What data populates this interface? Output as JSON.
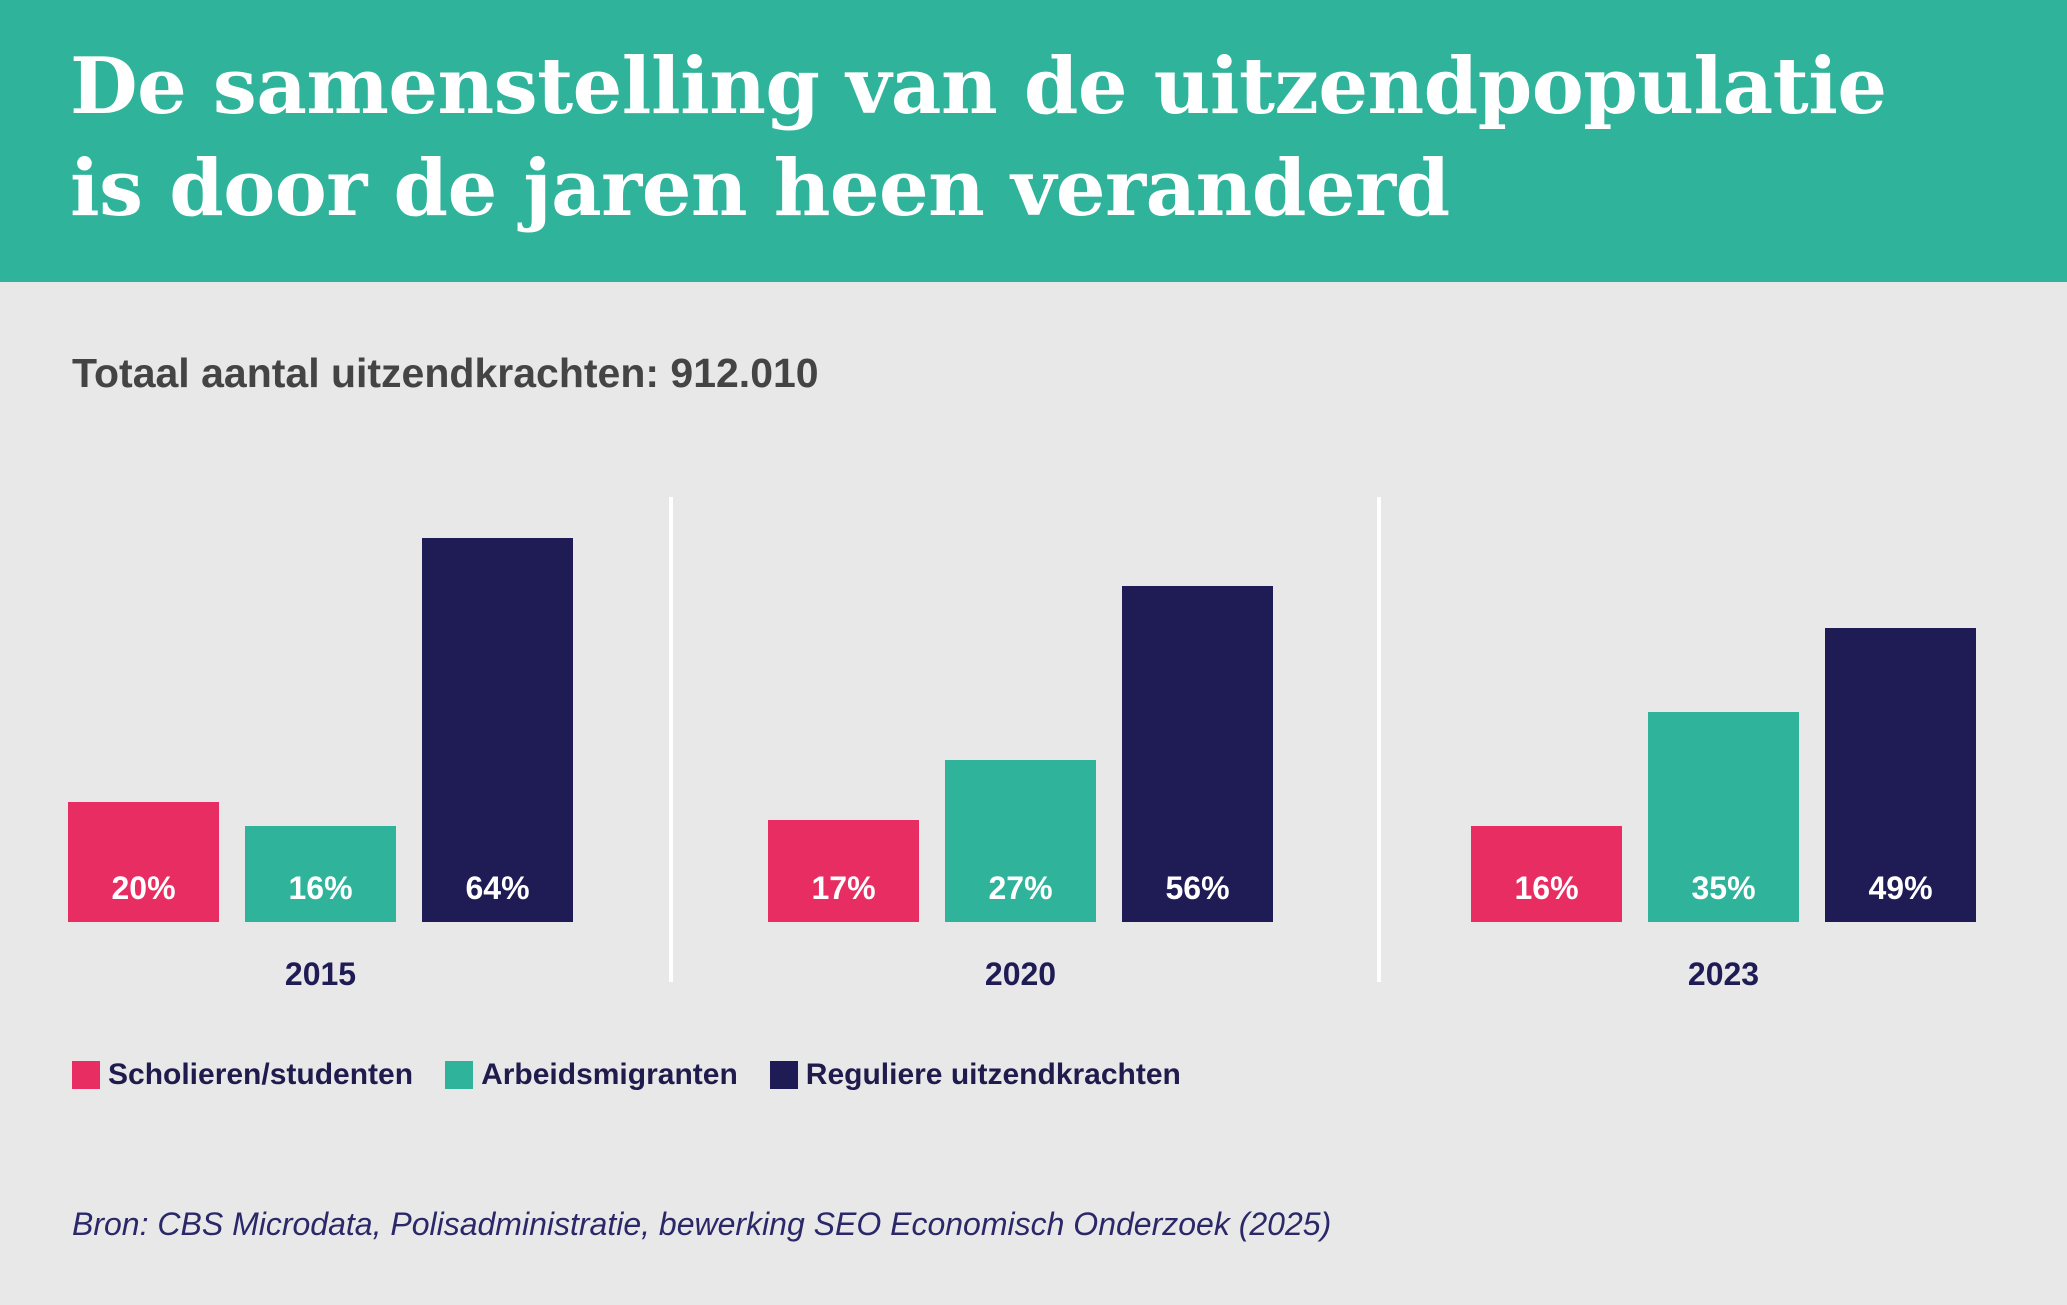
{
  "header": {
    "title_line1": "De samenstelling van de uitzendpopulatie",
    "title_line2": "is door de jaren heen veranderd"
  },
  "subtitle": "Totaal aantal uitzendkrachten: 912.010",
  "colors": {
    "header_bg": "#2fb39b",
    "page_bg": "#e8e8e8",
    "scholieren": "#e82d62",
    "arbeidsmigranten": "#2fb39b",
    "regulier": "#1f1b55"
  },
  "chart_data": {
    "type": "bar",
    "title": "",
    "xlabel": "",
    "ylabel": "",
    "ylim": [
      0,
      70
    ],
    "grid": false,
    "legend_position": "bottom-left",
    "categories": [
      "2015",
      "2020",
      "2023"
    ],
    "series": [
      {
        "name": "Scholieren/studenten",
        "values": [
          20,
          17,
          16
        ],
        "labels": [
          "20%",
          "17%",
          "16%"
        ],
        "color": "#e82d62"
      },
      {
        "name": "Arbeidsmigranten",
        "values": [
          16,
          27,
          35
        ],
        "labels": [
          "16%",
          "27%",
          "35%"
        ],
        "color": "#2fb39b"
      },
      {
        "name": "Reguliere uitzendkrachten",
        "values": [
          64,
          56,
          49
        ],
        "labels": [
          "64%",
          "56%",
          "49%"
        ],
        "color": "#1f1b55"
      }
    ]
  },
  "source": "Bron: CBS Microdata, Polisadministratie, bewerking SEO Economisch Onderzoek (2025)"
}
